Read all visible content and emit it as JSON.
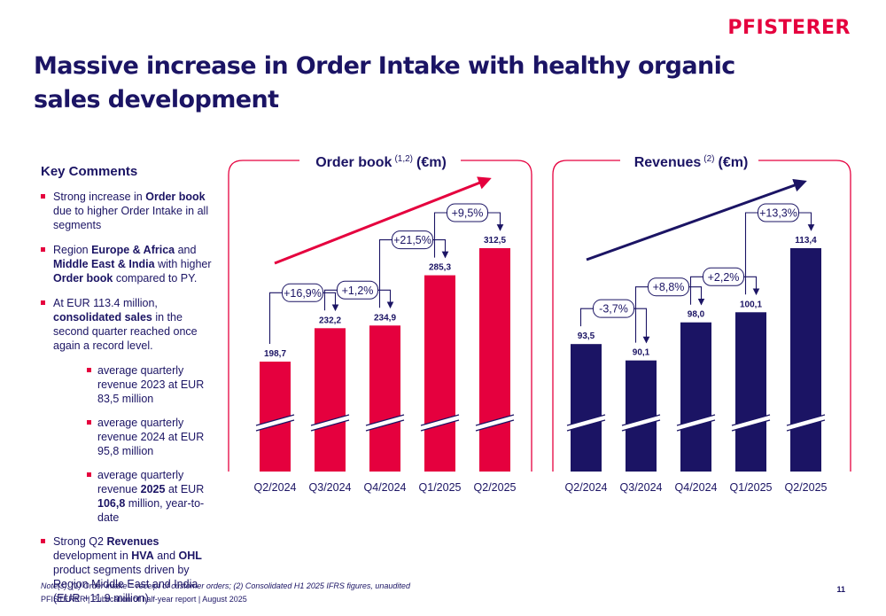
{
  "brand": {
    "logo_text": "PFISTERER",
    "accent": "#e5003e",
    "navy": "#1b1464"
  },
  "title": "Massive increase in Order Intake with healthy organic sales development",
  "key_comments": {
    "heading": "Key Comments",
    "b1": {
      "t1": "Strong increase in ",
      "b": "Order book",
      "t2": " due to higher Order Intake in all segments"
    },
    "b2": {
      "t1": "Region ",
      "b1": "Europe & Africa",
      "t2": " and ",
      "b2": "Middle East & India",
      "t3": " with higher ",
      "b3": "Order book",
      "t4": " compared to PY."
    },
    "b3": {
      "t1": "At EUR 113.4 million, ",
      "b": "consolidated sales",
      "t2": " in the second quarter reached once again a record level."
    },
    "s1": "average quarterly revenue 2023 at EUR 83,5 million",
    "s2": "average quarterly revenue 2024 at EUR 95,8 million",
    "s3": {
      "t1": "average quarterly revenue ",
      "b1": "2025",
      "t2": " at EUR ",
      "b2": "106,8",
      "t3": " million, year-to-date"
    },
    "b4": {
      "t1": "Strong Q2 ",
      "b1": "Revenues",
      "t2": " development in ",
      "b2": "HVA",
      "t3": " and ",
      "b3": "OHL",
      "t4": " product segments driven by Region Middle East and India (EUR +11.9 million)"
    }
  },
  "chart_data": [
    {
      "type": "bar",
      "title": "Order book",
      "title_note": "(1,2)",
      "title_unit": "(€m)",
      "categories": [
        "Q2/2024",
        "Q3/2024",
        "Q4/2024",
        "Q1/2025",
        "Q2/2025"
      ],
      "values": [
        198.7,
        232.2,
        234.9,
        285.3,
        312.5
      ],
      "value_labels": [
        "198,7",
        "232,2",
        "234,9",
        "285,3",
        "312,5"
      ],
      "growth_labels": [
        "+16,9%",
        "+1,2%",
        "+21,5%",
        "+9,5%"
      ],
      "color": "#e5003e",
      "axis_break": true
    },
    {
      "type": "bar",
      "title": "Revenues",
      "title_note": "(2)",
      "title_unit": "(€m)",
      "categories": [
        "Q2/2024",
        "Q3/2024",
        "Q4/2024",
        "Q1/2025",
        "Q2/2025"
      ],
      "values": [
        93.5,
        90.1,
        98.0,
        100.1,
        113.4
      ],
      "value_labels": [
        "93,5",
        "90,1",
        "98,0",
        "100,1",
        "113,4"
      ],
      "growth_labels": [
        "-3,7%",
        "+8,8%",
        "+2,2%",
        "+13,3%"
      ],
      "color": "#1b1464",
      "axis_break": true
    }
  ],
  "note": "Note(s): (1) Order intake = receipt of customer orders; (2) Consolidated H1 2025 IFRS figures, unaudited",
  "footer": "PFISTERER | Publication of half-year report | August 2025",
  "page_number": "11"
}
